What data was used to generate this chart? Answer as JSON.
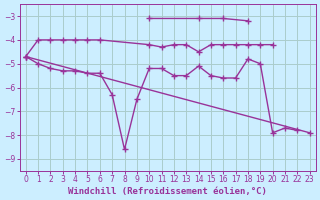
{
  "background_color": "#cceeff",
  "grid_color": "#aacccc",
  "line_color": "#993399",
  "marker": "+",
  "markersize": 4,
  "linewidth": 1.0,
  "xlabel": "Windchill (Refroidissement éolien,°C)",
  "xlabel_fontsize": 6.5,
  "xlabel_color": "#993399",
  "tick_color": "#993399",
  "tick_fontsize": 5.5,
  "ylim": [
    -9.5,
    -2.5
  ],
  "xlim": [
    -0.5,
    23.5
  ],
  "yticks": [
    -3,
    -4,
    -5,
    -6,
    -7,
    -8,
    -9
  ],
  "xticks": [
    0,
    1,
    2,
    3,
    4,
    5,
    6,
    7,
    8,
    9,
    10,
    11,
    12,
    13,
    14,
    15,
    16,
    17,
    18,
    19,
    20,
    21,
    22,
    23
  ],
  "series": [
    {
      "x": [
        10,
        14,
        16,
        18
      ],
      "y": [
        -3.1,
        -3.1,
        -3.1,
        -3.2
      ]
    },
    {
      "x": [
        0,
        1,
        2,
        3,
        4,
        5,
        6,
        10,
        11,
        12,
        13,
        14,
        15,
        16,
        17,
        18,
        19,
        20
      ],
      "y": [
        -4.7,
        -4.0,
        -4.0,
        -4.0,
        -4.0,
        -4.0,
        -4.0,
        -4.2,
        -4.3,
        -4.2,
        -4.2,
        -4.5,
        -4.2,
        -4.2,
        -4.2,
        -4.2,
        -4.2,
        -4.2
      ]
    },
    {
      "x": [
        0,
        1,
        2,
        3,
        4,
        5,
        6,
        7,
        8,
        9,
        10,
        11,
        12,
        13,
        14,
        15,
        16,
        17,
        18,
        19,
        20,
        21,
        22
      ],
      "y": [
        -4.7,
        -5.0,
        -5.2,
        -5.3,
        -5.3,
        -5.4,
        -5.4,
        -6.3,
        -8.6,
        -6.5,
        -5.2,
        -5.2,
        -5.5,
        -5.5,
        -5.1,
        -5.5,
        -5.6,
        -5.6,
        -4.8,
        -5.0,
        -7.9,
        -7.7,
        -7.8
      ]
    },
    {
      "x": [
        0,
        23
      ],
      "y": [
        -4.7,
        -7.9
      ]
    }
  ]
}
